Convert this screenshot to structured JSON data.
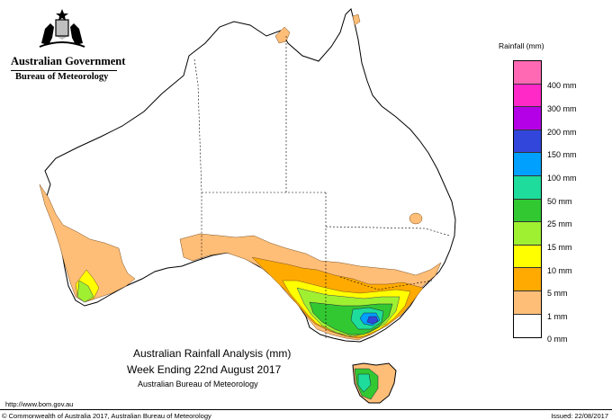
{
  "header": {
    "government": "Australian Government",
    "bureau": "Bureau of Meteorology"
  },
  "legend": {
    "title": "Rainfall (mm)",
    "items": [
      {
        "label": "",
        "color": "#ff69b4"
      },
      {
        "label": "400 mm",
        "color": "#ff29c8"
      },
      {
        "label": "300 mm",
        "color": "#b400e6"
      },
      {
        "label": "200 mm",
        "color": "#3246dc"
      },
      {
        "label": "150 mm",
        "color": "#00a0ff"
      },
      {
        "label": "100 mm",
        "color": "#1edc9b"
      },
      {
        "label": "50 mm",
        "color": "#32c832"
      },
      {
        "label": "25 mm",
        "color": "#a0f032"
      },
      {
        "label": "15 mm",
        "color": "#ffff00"
      },
      {
        "label": "10 mm",
        "color": "#ffaa00"
      },
      {
        "label": "5 mm",
        "color": "#ffbe78"
      },
      {
        "label": "1 mm",
        "color": "#ffffff"
      },
      {
        "label": "0 mm",
        "color": ""
      }
    ]
  },
  "map": {
    "title_line1": "Australian Rainfall Analysis (mm)",
    "title_line2": "Week Ending 22nd August 2017",
    "source": "Australian Bureau of Meteorology"
  },
  "footer": {
    "url": "http://www.bom.gov.au",
    "copyright": "© Commonwealth of Australia 2017, Australian Bureau of Meteorology",
    "issued": "Issued: 22/08/2017"
  }
}
